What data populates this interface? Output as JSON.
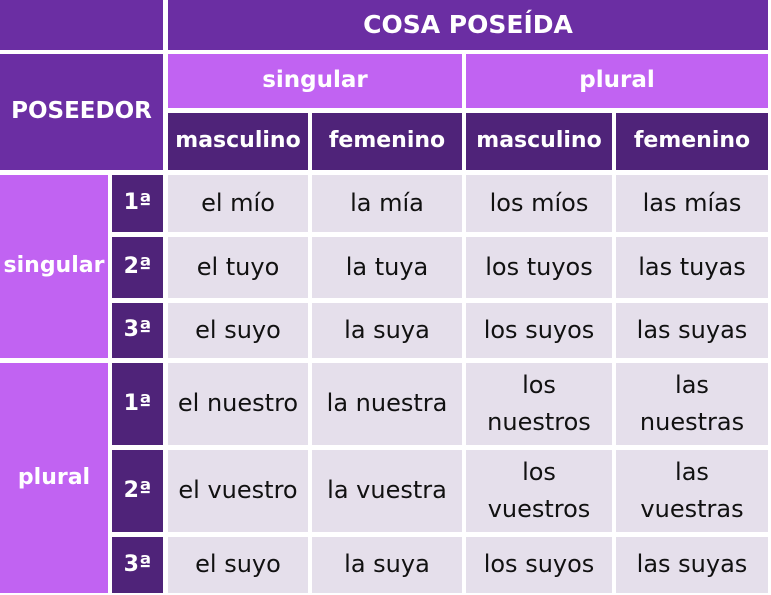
{
  "header": {
    "title": "COSA POSEÍDA",
    "possessor": "POSEEDOR",
    "numbers": [
      "singular",
      "plural"
    ],
    "genders": [
      "masculino",
      "femenino",
      "masculino",
      "femenino"
    ]
  },
  "groups": [
    {
      "label": "singular",
      "rows": [
        {
          "person": "1ª",
          "cells": [
            "el mío",
            "la mía",
            "los míos",
            "las mías"
          ]
        },
        {
          "person": "2ª",
          "cells": [
            "el tuyo",
            "la tuya",
            "los tuyos",
            "las tuyas"
          ]
        },
        {
          "person": "3ª",
          "cells": [
            "el suyo",
            "la suya",
            "los suyos",
            "las suyas"
          ]
        }
      ]
    },
    {
      "label": "plural",
      "rows": [
        {
          "person": "1ª",
          "cells": [
            "el nuestro",
            "la nuestra",
            "los nuestros",
            "las nuestras"
          ]
        },
        {
          "person": "2ª",
          "cells": [
            "el vuestro",
            "la vuestra",
            "los vuestros",
            "las vuestras"
          ]
        },
        {
          "person": "3ª",
          "cells": [
            "el suyo",
            "la suya",
            "los suyos",
            "las suyas"
          ]
        }
      ]
    }
  ]
}
